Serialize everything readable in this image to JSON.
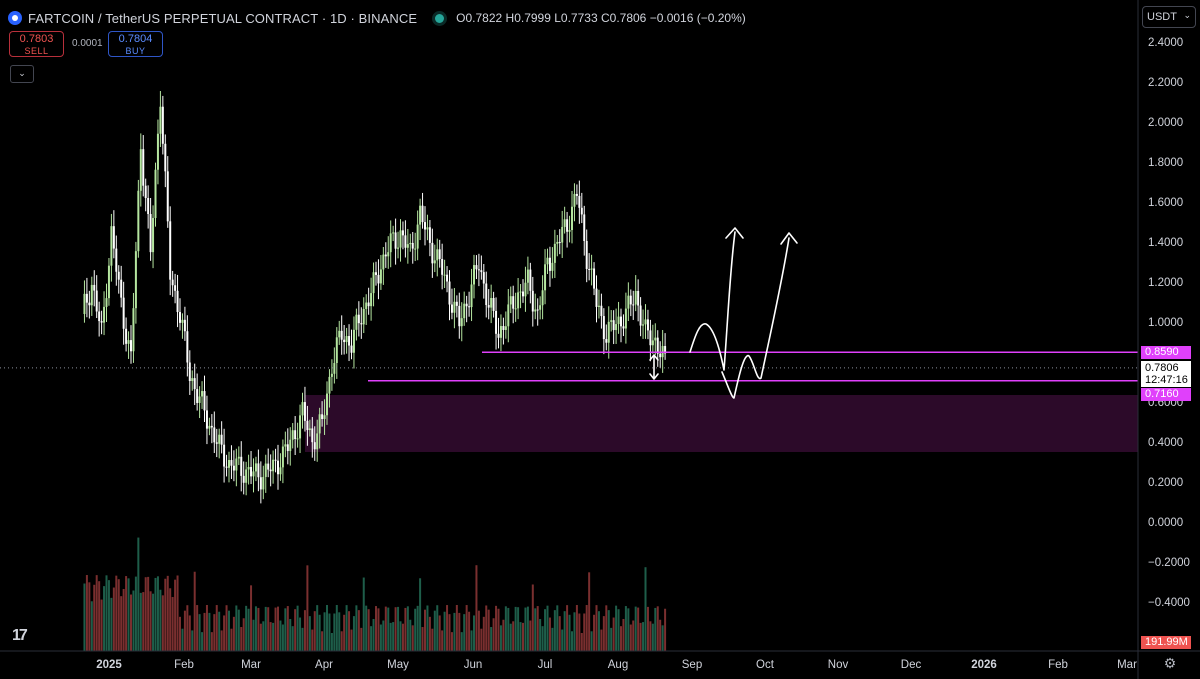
{
  "header": {
    "title": "FARTCOIN / TetherUS PERPETUAL CONTRACT · 1D · BINANCE",
    "ohlc": [
      {
        "k": "O",
        "v": "0.7822"
      },
      {
        "k": "H",
        "v": "0.7999"
      },
      {
        "k": "L",
        "v": "0.7733"
      },
      {
        "k": "C",
        "v": "0.7806"
      }
    ],
    "change": "−0.0016 (−0.20%)"
  },
  "trade": {
    "sell_price": "0.7803",
    "sell_label": "SELL",
    "spread": "0.0001",
    "buy_price": "0.7804",
    "buy_label": "BUY"
  },
  "currency_selector": "USDT",
  "price_tags": {
    "upper_line": "0.8590",
    "lower_line": "0.7160",
    "current_price": "0.7806",
    "countdown": "12:47:16",
    "volume": "191.99M"
  },
  "colors": {
    "background": "#000000",
    "up_candle": "#b5e6a0",
    "down_candle": "#ffffff",
    "support_line": "#e040fb",
    "zone": "#2c0a29",
    "volume_up": "#1e5e4a",
    "volume_down": "#7a2f2f"
  },
  "chart_data": {
    "type": "candlestick",
    "title": "FARTCOIN / TetherUS PERPETUAL CONTRACT · 1D · BINANCE",
    "y_ticks": [
      "2.4000",
      "2.2000",
      "2.0000",
      "1.8000",
      "1.6000",
      "1.4000",
      "1.2000",
      "1.0000",
      "0.6000",
      "0.4000",
      "0.2000",
      "0.0000",
      "−0.2000",
      "−0.4000"
    ],
    "x_ticks": [
      "2025",
      "Feb",
      "Mar",
      "Apr",
      "May",
      "Jun",
      "Jul",
      "Aug",
      "Sep",
      "Oct",
      "Nov",
      "Dec",
      "2026",
      "Feb",
      "Mar"
    ],
    "ylim": [
      -0.6,
      2.55
    ],
    "price_path": [
      [
        0,
        1.05
      ],
      [
        4,
        1.2
      ],
      [
        8,
        0.95
      ],
      [
        12,
        1.45
      ],
      [
        16,
        1.1
      ],
      [
        20,
        0.82
      ],
      [
        24,
        1.9
      ],
      [
        28,
        1.35
      ],
      [
        32,
        2.15
      ],
      [
        36,
        1.25
      ],
      [
        40,
        1.05
      ],
      [
        44,
        0.75
      ],
      [
        48,
        0.62
      ],
      [
        52,
        0.5
      ],
      [
        56,
        0.38
      ],
      [
        60,
        0.3
      ],
      [
        66,
        0.27
      ],
      [
        72,
        0.24
      ],
      [
        78,
        0.28
      ],
      [
        84,
        0.38
      ],
      [
        90,
        0.55
      ],
      [
        94,
        0.42
      ],
      [
        98,
        0.5
      ],
      [
        102,
        0.8
      ],
      [
        106,
        0.95
      ],
      [
        110,
        0.9
      ],
      [
        114,
        1.05
      ],
      [
        118,
        1.15
      ],
      [
        122,
        1.3
      ],
      [
        126,
        1.4
      ],
      [
        130,
        1.45
      ],
      [
        134,
        1.35
      ],
      [
        138,
        1.55
      ],
      [
        142,
        1.4
      ],
      [
        146,
        1.3
      ],
      [
        150,
        1.15
      ],
      [
        154,
        1.0
      ],
      [
        158,
        1.15
      ],
      [
        162,
        1.3
      ],
      [
        166,
        1.1
      ],
      [
        170,
        0.95
      ],
      [
        174,
        1.05
      ],
      [
        178,
        1.15
      ],
      [
        182,
        1.2
      ],
      [
        186,
        1.05
      ],
      [
        190,
        1.3
      ],
      [
        194,
        1.4
      ],
      [
        198,
        1.5
      ],
      [
        202,
        1.65
      ],
      [
        206,
        1.35
      ],
      [
        210,
        1.1
      ],
      [
        214,
        0.95
      ],
      [
        218,
        1.0
      ],
      [
        222,
        1.05
      ],
      [
        226,
        1.15
      ],
      [
        230,
        0.95
      ],
      [
        234,
        0.92
      ],
      [
        238,
        0.8
      ]
    ],
    "levels": [
      0.859,
      0.716
    ],
    "zone": [
      0.36,
      0.645
    ],
    "current_price": 0.7806
  }
}
